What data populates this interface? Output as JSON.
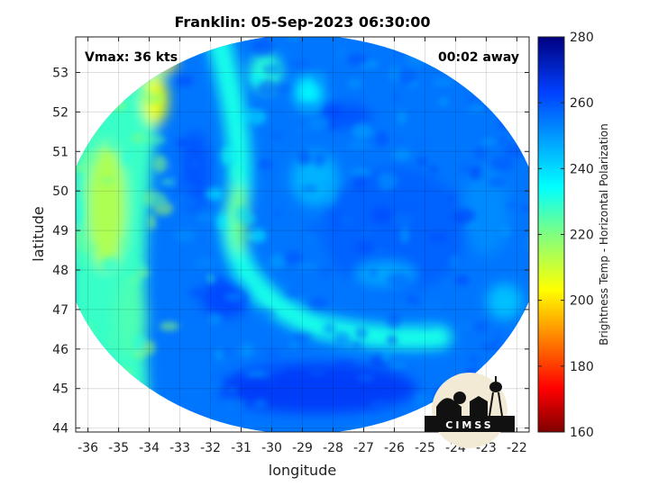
{
  "chart_data": {
    "type": "heatmap",
    "title": "Franklin: 05-Sep-2023 06:30:00",
    "xlabel": "longitude",
    "ylabel": "latitude",
    "xlim": [
      -36.4,
      -21.6
    ],
    "ylim": [
      43.9,
      53.9
    ],
    "xticks": [
      -36,
      -35,
      -34,
      -33,
      -32,
      -31,
      -30,
      -29,
      -28,
      -27,
      -26,
      -25,
      -24,
      -23,
      -22
    ],
    "yticks": [
      44,
      45,
      46,
      47,
      48,
      49,
      50,
      51,
      52,
      53
    ],
    "grid": true,
    "annotations": {
      "vmax": "Vmax: 36 kts",
      "time_away": "00:02 away"
    },
    "colorbar": {
      "label": "Brightness Temp - Horizontal Polarization",
      "range": [
        160,
        280
      ],
      "ticks": [
        160,
        180,
        200,
        220,
        240,
        260,
        280
      ],
      "colormap": "jet"
    },
    "swath": {
      "shape": "circle",
      "center": [
        -29,
        48.9
      ],
      "lon_radius": 7.85,
      "lat_radius": 5.05
    },
    "field_description": [
      {
        "feature": "western warm band",
        "lon": -35.3,
        "lat": 49.5,
        "value": 218
      },
      {
        "feature": "northwest warm streak",
        "lon": -33.7,
        "lat": 52.6,
        "value": 200
      },
      {
        "feature": "central curved warm band",
        "lon": -31,
        "lat": 49.3,
        "value": 225
      },
      {
        "feature": "background ocean",
        "lon": -26,
        "lat": 49,
        "value": 258
      },
      {
        "feature": "southern cold region",
        "lon": -28,
        "lat": 45,
        "value": 262
      }
    ]
  },
  "logo": {
    "text": "CIMSS"
  }
}
